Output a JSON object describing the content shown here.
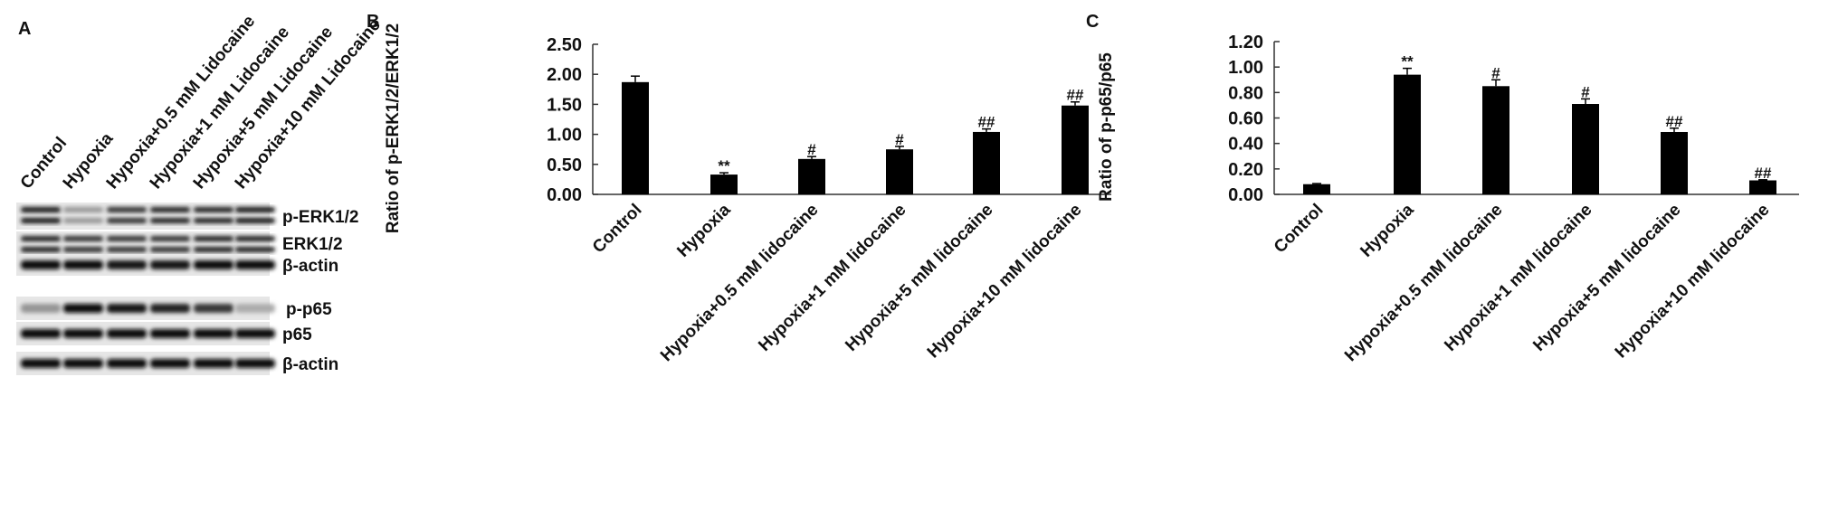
{
  "panel_a": {
    "label": "A",
    "lanes": [
      "Control",
      "Hypoxia",
      "Hypoxia+0.5 mM Lidocaine",
      "Hypoxia+1 mM Lidocaine",
      "Hypoxia+5 mM Lidocaine",
      "Hypoxia+10 mM Lidocaine"
    ],
    "blots": [
      {
        "name": "p-ERK1/2",
        "intensity": [
          0.9,
          0.35,
          0.8,
          0.85,
          0.85,
          0.9
        ],
        "double": true
      },
      {
        "name": "ERK1/2",
        "intensity": [
          0.85,
          0.8,
          0.8,
          0.8,
          0.85,
          0.85
        ],
        "double": true
      },
      {
        "name": "β-actin",
        "intensity": [
          0.95,
          0.95,
          0.9,
          0.9,
          0.95,
          0.95
        ],
        "double": false
      },
      {
        "name": "p-p65",
        "intensity": [
          0.35,
          0.95,
          0.9,
          0.85,
          0.75,
          0.25
        ],
        "double": false
      },
      {
        "name": "p65",
        "intensity": [
          0.95,
          0.95,
          0.95,
          0.95,
          0.95,
          0.95
        ],
        "double": false
      },
      {
        "name": "β-actin",
        "intensity": [
          0.95,
          0.95,
          0.95,
          0.95,
          0.95,
          0.95
        ],
        "double": false
      }
    ]
  },
  "chart_data": [
    {
      "panel_label": "B",
      "type": "bar",
      "categories": [
        "Control",
        "Hypoxia",
        "Hypoxia+0.5 mM  lidocaine",
        "Hypoxia+1 mM  lidocaine",
        "Hypoxia+5 mM  lidocaine",
        "Hypoxia+10 mM  lidocaine"
      ],
      "values": [
        1.87,
        0.33,
        0.59,
        0.75,
        1.04,
        1.48
      ],
      "errors": [
        0.1,
        0.03,
        0.04,
        0.05,
        0.05,
        0.06
      ],
      "annotations": [
        "",
        "**",
        "#",
        "#",
        "##",
        "##"
      ],
      "ylabel": "Ratio of p-ERK1/2/ERK1/2",
      "ylim": [
        0,
        2.5
      ],
      "yticks": [
        "0.00",
        "0.50",
        "1.00",
        "1.50",
        "2.00",
        "2.50"
      ],
      "bar_color": "#000000"
    },
    {
      "panel_label": "C",
      "type": "bar",
      "categories": [
        "Control",
        "Hypoxia",
        "Hypoxia+0.5 mM  lidocaine",
        "Hypoxia+1 mM  lidocaine",
        "Hypoxia+5 mM  lidocaine",
        "Hypoxia+10 mM  lidocaine"
      ],
      "values": [
        0.08,
        0.94,
        0.85,
        0.71,
        0.49,
        0.11
      ],
      "errors": [
        0.005,
        0.05,
        0.05,
        0.04,
        0.03,
        0.005
      ],
      "annotations": [
        "",
        "**",
        "#",
        "#",
        "##",
        "##"
      ],
      "ylabel": "Ratio of p-p65/p65",
      "ylim": [
        0,
        1.2
      ],
      "yticks": [
        "0.00",
        "0.20",
        "0.40",
        "0.60",
        "0.80",
        "1.00",
        "1.20"
      ],
      "bar_color": "#000000"
    }
  ]
}
